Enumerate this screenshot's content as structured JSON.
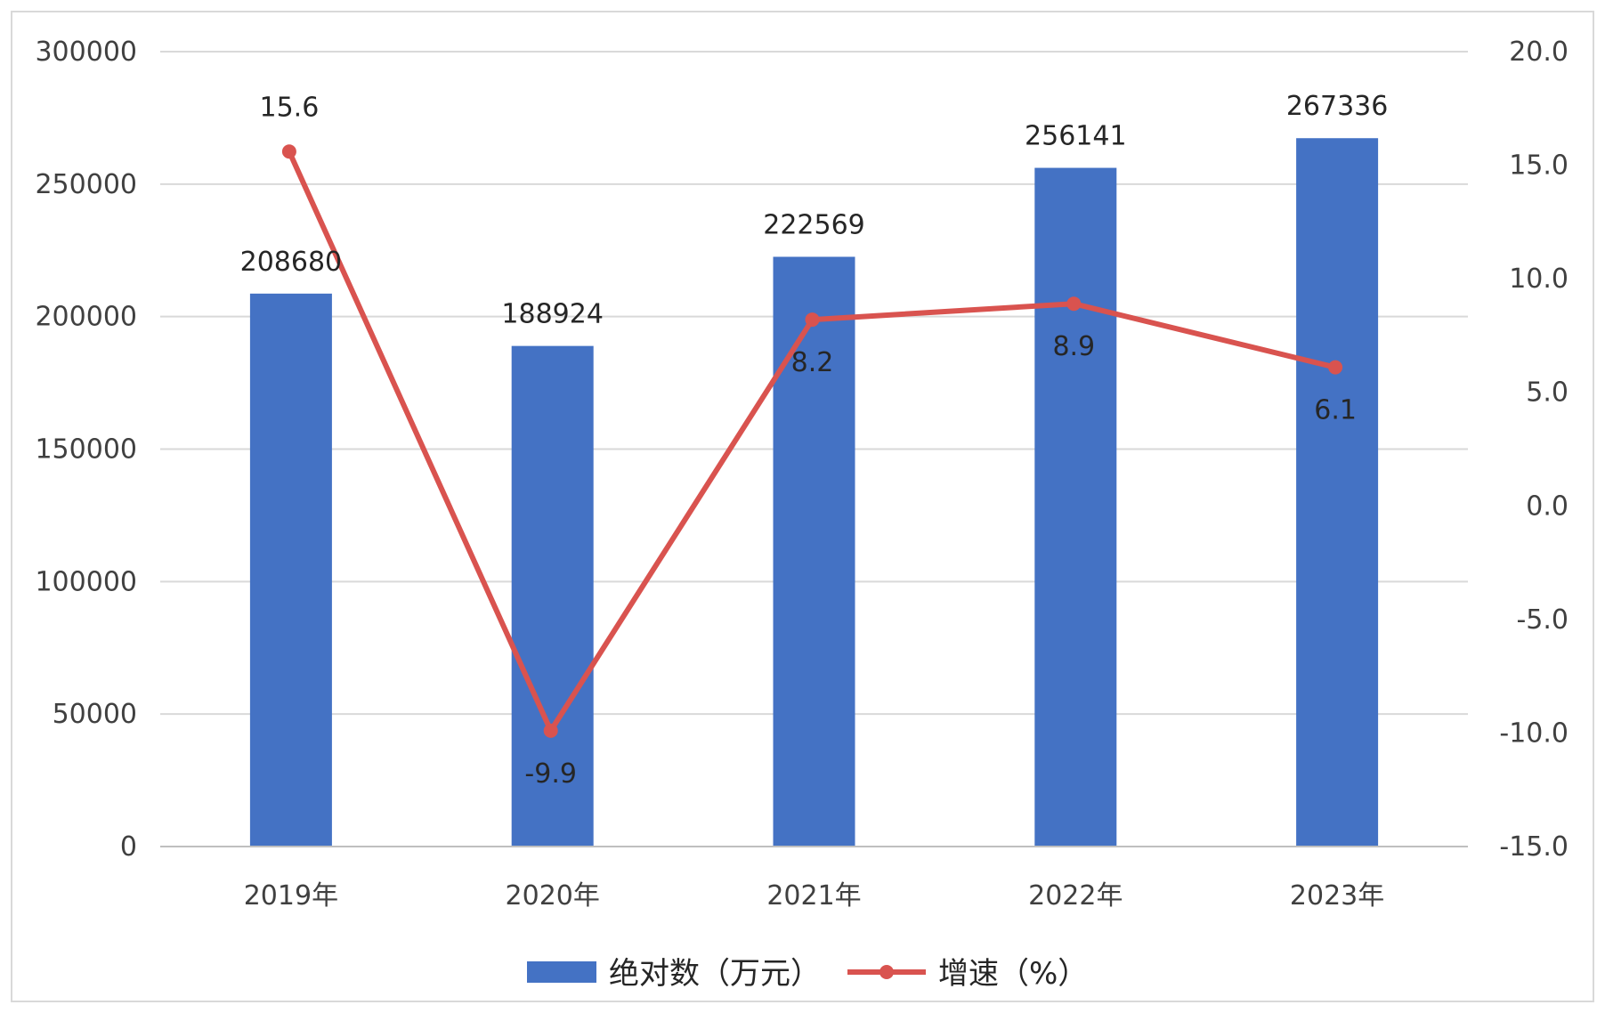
{
  "chart_data": {
    "type": "bar",
    "categories": [
      "2019年",
      "2020年",
      "2021年",
      "2022年",
      "2023年"
    ],
    "series": [
      {
        "name": "绝对数（万元）",
        "type": "bar",
        "axis": "left",
        "color": "#4472c4",
        "values": [
          208680,
          188924,
          222569,
          256141,
          267336
        ],
        "labels": [
          "208680",
          "188924",
          "222569",
          "256141",
          "267336"
        ]
      },
      {
        "name": "增速（%）",
        "type": "line",
        "axis": "right",
        "color": "#d9534f",
        "values": [
          15.6,
          -9.9,
          8.2,
          8.9,
          6.1
        ],
        "labels": [
          "15.6",
          "-9.9",
          "8.2",
          "8.9",
          "6.1"
        ]
      }
    ],
    "y_left": {
      "min": 0,
      "max": 300000,
      "ticks": [
        "300000",
        "250000",
        "200000",
        "150000",
        "100000",
        "50000",
        "0"
      ]
    },
    "y_right": {
      "min": -15,
      "max": 20,
      "ticks": [
        "20.0",
        "15.0",
        "10.0",
        "5.0",
        "0.0",
        "-5.0",
        "-10.0",
        "-15.0"
      ]
    },
    "grid": true,
    "legend": "bottom",
    "title": "",
    "xlabel": "",
    "ylabel": ""
  }
}
